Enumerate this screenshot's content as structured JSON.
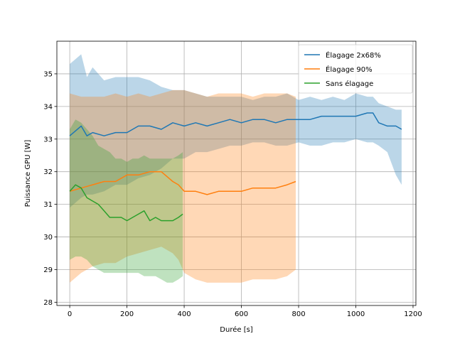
{
  "chart_data": {
    "type": "line",
    "title": "",
    "xlabel": "Durée [s]",
    "ylabel": "Puissance GPU [W]",
    "xlim": [
      -45,
      1210
    ],
    "ylim": [
      27.9,
      36.0
    ],
    "xticks": [
      0,
      200,
      400,
      600,
      800,
      1000,
      1200
    ],
    "yticks": [
      28,
      29,
      30,
      31,
      32,
      33,
      34,
      35
    ],
    "grid": true,
    "legend_position": "top-right",
    "series": [
      {
        "name": "Élagage 2x68%",
        "color": "#1f77b4",
        "x": [
          0,
          40,
          60,
          80,
          120,
          160,
          200,
          240,
          280,
          320,
          360,
          400,
          440,
          480,
          520,
          560,
          600,
          640,
          680,
          720,
          760,
          800,
          840,
          880,
          920,
          960,
          1000,
          1040,
          1060,
          1080,
          1110,
          1140,
          1160
        ],
        "y": [
          33.1,
          33.4,
          33.1,
          33.2,
          33.1,
          33.2,
          33.2,
          33.4,
          33.4,
          33.3,
          33.5,
          33.4,
          33.5,
          33.4,
          33.5,
          33.6,
          33.5,
          33.6,
          33.6,
          33.5,
          33.6,
          33.6,
          33.6,
          33.7,
          33.7,
          33.7,
          33.7,
          33.8,
          33.8,
          33.5,
          33.4,
          33.4,
          33.3
        ],
        "upper": [
          35.3,
          35.6,
          34.9,
          35.2,
          34.8,
          34.9,
          34.9,
          34.9,
          34.8,
          34.6,
          34.5,
          34.5,
          34.4,
          34.3,
          34.3,
          34.3,
          34.3,
          34.2,
          34.3,
          34.3,
          34.4,
          34.2,
          34.3,
          34.2,
          34.3,
          34.2,
          34.4,
          34.3,
          34.3,
          34.1,
          34.0,
          33.9,
          33.9
        ],
        "lower": [
          30.9,
          31.2,
          31.3,
          31.3,
          31.4,
          31.6,
          31.6,
          31.8,
          31.9,
          32.1,
          32.4,
          32.4,
          32.6,
          32.6,
          32.7,
          32.8,
          32.8,
          32.9,
          32.9,
          32.8,
          32.8,
          32.9,
          32.8,
          32.8,
          32.9,
          32.9,
          33.0,
          32.9,
          32.9,
          32.8,
          32.6,
          31.9,
          31.6
        ]
      },
      {
        "name": "Élagage 90%",
        "color": "#ff7f0e",
        "x": [
          0,
          40,
          80,
          120,
          160,
          200,
          240,
          280,
          320,
          360,
          380,
          400,
          440,
          480,
          520,
          560,
          600,
          640,
          680,
          720,
          760,
          790
        ],
        "y": [
          31.4,
          31.5,
          31.6,
          31.7,
          31.7,
          31.9,
          31.9,
          32.0,
          32.0,
          31.7,
          31.6,
          31.4,
          31.4,
          31.3,
          31.4,
          31.4,
          31.4,
          31.5,
          31.5,
          31.5,
          31.6,
          31.7
        ],
        "upper": [
          34.4,
          34.3,
          34.3,
          34.3,
          34.4,
          34.3,
          34.4,
          34.3,
          34.4,
          34.5,
          34.5,
          34.5,
          34.4,
          34.3,
          34.4,
          34.4,
          34.4,
          34.3,
          34.4,
          34.4,
          34.4,
          34.3
        ],
        "lower": [
          28.6,
          28.9,
          29.1,
          29.2,
          29.2,
          29.4,
          29.5,
          29.6,
          29.7,
          29.5,
          29.3,
          28.9,
          28.7,
          28.6,
          28.6,
          28.6,
          28.6,
          28.7,
          28.7,
          28.7,
          28.8,
          29.0
        ]
      },
      {
        "name": "Sans élagage",
        "color": "#2ca02c",
        "x": [
          0,
          20,
          40,
          60,
          80,
          100,
          120,
          140,
          160,
          180,
          200,
          220,
          240,
          260,
          280,
          300,
          320,
          340,
          360,
          380,
          395
        ],
        "y": [
          31.4,
          31.6,
          31.5,
          31.2,
          31.1,
          31.0,
          30.8,
          30.6,
          30.6,
          30.6,
          30.5,
          30.6,
          30.7,
          30.8,
          30.5,
          30.6,
          30.5,
          30.5,
          30.5,
          30.6,
          30.7
        ],
        "upper": [
          33.3,
          33.6,
          33.5,
          33.3,
          33.1,
          32.8,
          32.7,
          32.6,
          32.4,
          32.4,
          32.3,
          32.4,
          32.4,
          32.5,
          32.4,
          32.4,
          32.4,
          32.4,
          32.4,
          32.5,
          32.6
        ],
        "lower": [
          29.3,
          29.4,
          29.4,
          29.3,
          29.1,
          29.0,
          28.9,
          28.9,
          28.9,
          28.9,
          28.9,
          28.9,
          28.9,
          28.8,
          28.8,
          28.8,
          28.7,
          28.6,
          28.6,
          28.7,
          28.8
        ]
      }
    ]
  }
}
